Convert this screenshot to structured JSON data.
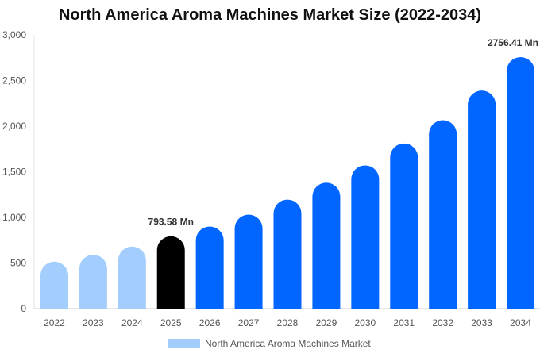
{
  "chart_data": {
    "type": "bar",
    "title": "North America Aroma Machines Market Size (2022-2034)",
    "xlabel": "",
    "ylabel": "",
    "categories": [
      "2022",
      "2023",
      "2024",
      "2025",
      "2026",
      "2027",
      "2028",
      "2029",
      "2030",
      "2031",
      "2032",
      "2033",
      "2034"
    ],
    "series": [
      {
        "name": "North America Aroma Machines Market",
        "values": [
          515,
          590,
          680,
          793.58,
          900,
          1030,
          1195,
          1380,
          1570,
          1810,
          2065,
          2390,
          2756.41
        ]
      }
    ],
    "ylim": [
      0,
      3000
    ],
    "yticks": [
      "0",
      "500",
      "1,000",
      "1,500",
      "2,000",
      "2,500",
      "3,000"
    ],
    "ytick_values": [
      0,
      500,
      1000,
      1500,
      2000,
      2500,
      3000
    ],
    "data_labels": [
      {
        "index": 3,
        "text": "793.58 Mn"
      },
      {
        "index": 12,
        "text": "2756.41 Mn"
      }
    ],
    "colors": {
      "historical": "#a3cdfd",
      "current": "#000000",
      "forecast": "#0066ff",
      "legend": "#a3cdfd"
    },
    "historical_count": 3,
    "current_index": 3,
    "grid": false,
    "legend_position": "bottom"
  }
}
